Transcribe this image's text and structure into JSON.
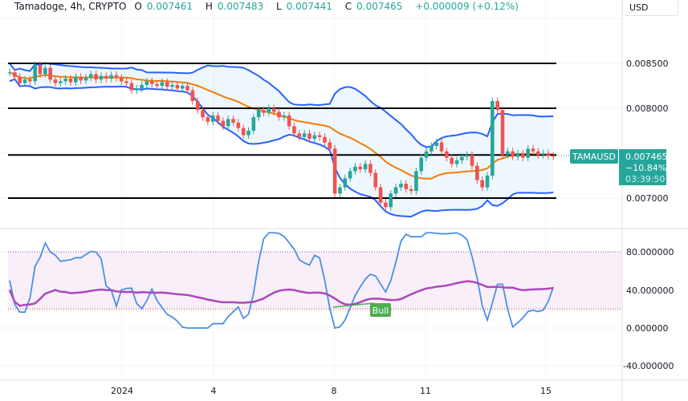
{
  "header": {
    "symbol": "Tamadoge, 4h, CRYPTO",
    "open_label": "O",
    "open": "0.007461",
    "high_label": "H",
    "high": "0.007483",
    "low_label": "L",
    "low": "0.007441",
    "close_label": "C",
    "close": "0.007465",
    "change": "+0.000009 (+0.12%)"
  },
  "currency": "USD",
  "price_tag": {
    "symbol": "TAMAUSD",
    "price": "0.007465",
    "change_pct": "−10.84%",
    "countdown": "03:39:50",
    "color": "#26a69a"
  },
  "colors": {
    "up": "#26a69a",
    "down": "#ef5350",
    "bands": "#2962ff",
    "basis": "#f57c00",
    "stoch_k": "#4a90e2",
    "rsi": "#ab47bc",
    "bull": "#4caf50"
  },
  "chart_data": [
    {
      "type": "candlestick",
      "title": "Tamadoge, 4h, CRYPTO",
      "indicators": [
        "Bollinger Bands (20)"
      ],
      "price_ticks": [
        "0.008500",
        "0.008000",
        "0.007000"
      ],
      "ylim": [
        0.00675,
        0.00895
      ],
      "horizontal_levels": [
        0.0085,
        0.008,
        0.00748,
        0.007
      ],
      "x_ticks": [
        "2024",
        "4",
        "8",
        "11",
        "15"
      ],
      "closes": [
        0.0084,
        0.00835,
        0.00828,
        0.00832,
        0.0083,
        0.00848,
        0.00838,
        0.00845,
        0.00832,
        0.00828,
        0.0083,
        0.00833,
        0.00829,
        0.00835,
        0.00831,
        0.00834,
        0.00838,
        0.00832,
        0.00836,
        0.00833,
        0.00837,
        0.00834,
        0.0083,
        0.00828,
        0.0082,
        0.00822,
        0.00826,
        0.0083,
        0.00827,
        0.00825,
        0.00829,
        0.00824,
        0.00826,
        0.00822,
        0.00825,
        0.0082,
        0.00808,
        0.00798,
        0.0079,
        0.00785,
        0.00792,
        0.00786,
        0.0078,
        0.00788,
        0.00784,
        0.00778,
        0.0077,
        0.00775,
        0.0079,
        0.00798,
        0.00795,
        0.008,
        0.00796,
        0.0079,
        0.00792,
        0.0078,
        0.00772,
        0.00768,
        0.00772,
        0.00766,
        0.0077,
        0.00768,
        0.00762,
        0.00755,
        0.00705,
        0.00712,
        0.00722,
        0.0073,
        0.00735,
        0.00732,
        0.00738,
        0.00728,
        0.00712,
        0.00695,
        0.0069,
        0.00705,
        0.00712,
        0.00716,
        0.0071,
        0.00708,
        0.0073,
        0.00745,
        0.00752,
        0.00758,
        0.00762,
        0.00752,
        0.00745,
        0.00738,
        0.00742,
        0.00746,
        0.00748,
        0.00736,
        0.0072,
        0.00712,
        0.00725,
        0.00808,
        0.00798,
        0.00748,
        0.00752,
        0.00746,
        0.0075,
        0.00745,
        0.00755,
        0.00752,
        0.00748,
        0.0075,
        0.00747,
        0.007465
      ]
    },
    {
      "type": "line",
      "title": "",
      "indicator": "Stochastic RSI",
      "y_ticks": [
        "80.000000",
        "40.000000",
        "0.000000",
        "-40.000000"
      ],
      "ylim": [
        -45,
        105
      ],
      "bands": [
        80,
        20
      ],
      "annotation": "Bull"
    }
  ]
}
